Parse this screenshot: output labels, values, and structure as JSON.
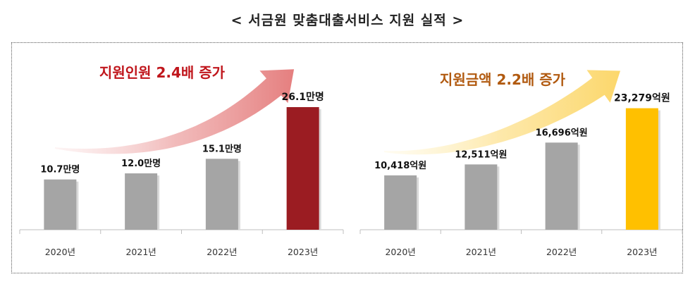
{
  "title": "< 서금원 맞춤대출서비스 지원 실적 >",
  "colors": {
    "base_bar": "#a5a5a5",
    "left_highlight": "#9b1c22",
    "right_highlight": "#ffc000",
    "left_callout_text": "#c0161c",
    "right_callout_text": "#b15a10"
  },
  "chart_data": [
    {
      "type": "bar",
      "categories": [
        "2020년",
        "2021년",
        "2022년",
        "2023년"
      ],
      "values": [
        10.7,
        12.0,
        15.1,
        26.1
      ],
      "unit": "만명",
      "value_labels": [
        "10.7만명",
        "12.0만명",
        "15.1만명",
        "26.1만명"
      ],
      "callout": "지원인원 2.4배 증가",
      "highlight_index": 3,
      "ylim": [
        0,
        30
      ],
      "grid": false,
      "legend": "none"
    },
    {
      "type": "bar",
      "categories": [
        "2020년",
        "2021년",
        "2022년",
        "2023년"
      ],
      "values": [
        10418,
        12511,
        16696,
        23279
      ],
      "unit": "억원",
      "value_labels": [
        "10,418억원",
        "12,511억원",
        "16,696억원",
        "23,279억원"
      ],
      "callout": "지원금액 2.2배 증가",
      "highlight_index": 3,
      "ylim": [
        0,
        27000
      ],
      "grid": false,
      "legend": "none"
    }
  ]
}
